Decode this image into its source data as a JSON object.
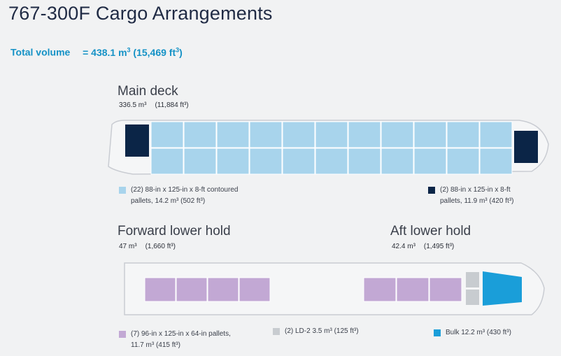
{
  "page": {
    "title": "767-300F Cargo Arrangements",
    "total_label": "Total volume",
    "total_value": "= 438.1 m",
    "total_m_exp": "3",
    "total_ft": " (15,469 ft",
    "total_ft_exp": "3",
    "total_close": ")"
  },
  "colors": {
    "light_pallet": "#a8d4ec",
    "dark_pallet": "#0b2547",
    "lower_pallet": "#c2a8d4",
    "ld2": "#c8ccd0",
    "bulk": "#1a9ed9",
    "fuselage_stroke": "#c9ccd2",
    "fuselage_fill": "#f5f6f7"
  },
  "main_deck": {
    "title": "Main deck",
    "vol_m": "336.5 m³",
    "vol_ft": "(11,884 ft³)",
    "legend_light_line1": "(22) 88-in x 125-in x 8-ft contoured",
    "legend_light_line2": "pallets, 14.2 m³ (502 ft³)",
    "legend_dark_line1": "(2) 88-in x 125-in x 8-ft",
    "legend_dark_line2": "pallets, 11.9 m³ (420 ft³)"
  },
  "forward_lower": {
    "title": "Forward lower hold",
    "vol_m": "47 m³",
    "vol_ft": "(1,660 ft³)"
  },
  "aft_lower": {
    "title": "Aft lower hold",
    "vol_m": "42.4 m³",
    "vol_ft": "(1,495 ft³)"
  },
  "lower_legend": {
    "pallets_line1": "(7) 96-in x 125-in x 64-in pallets,",
    "pallets_line2": "11.7 m³ (415 ft³)",
    "ld2": "(2) LD-2 3.5 m³ (125 ft³)",
    "bulk": "Bulk 12.2 m³ (430 ft³)"
  }
}
